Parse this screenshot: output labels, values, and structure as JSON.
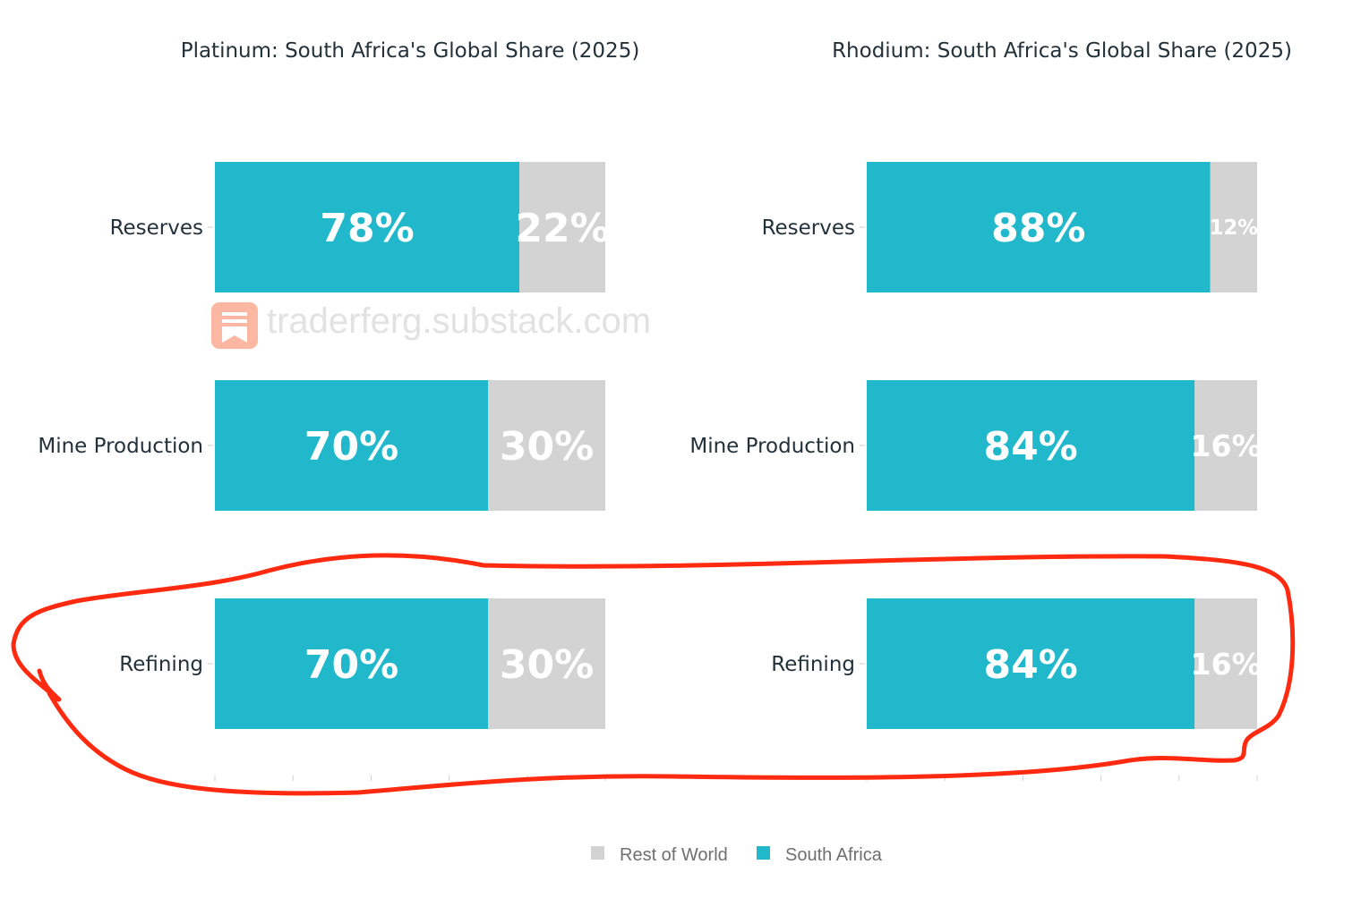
{
  "watermark": "traderferg.substack.com",
  "colors": {
    "south_africa": "#22b8cc",
    "rest_of_world": "#d3d3d3",
    "annotation": "#ff2a10",
    "watermark_icon": "#fbb7a1"
  },
  "legend": {
    "items": [
      {
        "label": "Rest of World",
        "color": "#d3d3d3"
      },
      {
        "label": "South Africa",
        "color": "#22b8cc"
      }
    ]
  },
  "chart_data": [
    {
      "type": "bar",
      "orientation": "horizontal",
      "stacked": true,
      "title": "Platinum: South Africa's Global Share (2025)",
      "categories": [
        "Reserves",
        "Mine Production",
        "Refining"
      ],
      "series": [
        {
          "name": "South Africa",
          "values": [
            78,
            70,
            70
          ],
          "labels": [
            "78%",
            "70%",
            "70%"
          ]
        },
        {
          "name": "Rest of World",
          "values": [
            22,
            30,
            30
          ],
          "labels": [
            "22%",
            "30%",
            "30%"
          ]
        }
      ],
      "xlim": [
        0,
        100
      ]
    },
    {
      "type": "bar",
      "orientation": "horizontal",
      "stacked": true,
      "title": "Rhodium: South Africa's Global Share (2025)",
      "categories": [
        "Reserves",
        "Mine Production",
        "Refining"
      ],
      "series": [
        {
          "name": "South Africa",
          "values": [
            88,
            84,
            84
          ],
          "labels": [
            "88%",
            "84%",
            "84%"
          ]
        },
        {
          "name": "Rest of World",
          "values": [
            12,
            16,
            16
          ],
          "labels": [
            "12%",
            "16%",
            "16%"
          ]
        }
      ],
      "xlim": [
        0,
        100
      ]
    }
  ]
}
